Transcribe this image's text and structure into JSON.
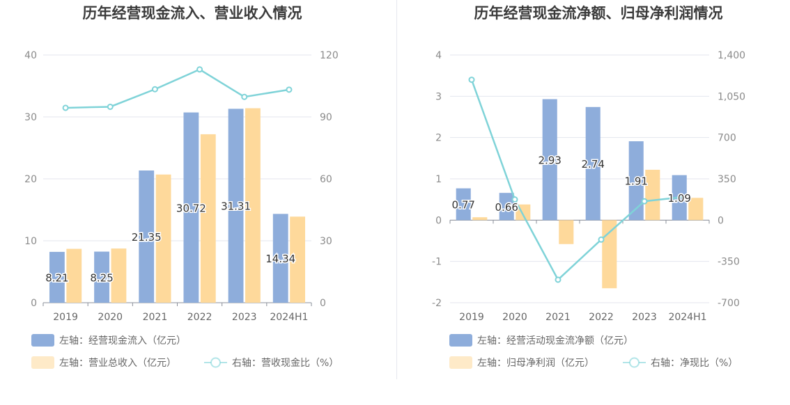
{
  "chart_data": [
    {
      "type": "bar",
      "title": "历年经营现金流入、营业收入情况",
      "categories": [
        "2019",
        "2020",
        "2021",
        "2022",
        "2023",
        "2024H1"
      ],
      "y_left": {
        "ticks": [
          "0",
          "10",
          "20",
          "30",
          "40"
        ],
        "range": [
          0,
          40
        ]
      },
      "y_right": {
        "ticks": [
          "0",
          "30",
          "60",
          "90",
          "120"
        ],
        "range": [
          0,
          120
        ]
      },
      "series": [
        {
          "name": "左轴：经营现金流入（亿元）",
          "type": "bar",
          "axis": "left",
          "color": "#8eaddb",
          "values": [
            8.21,
            8.25,
            21.35,
            30.72,
            31.31,
            14.34
          ],
          "labels": [
            "8.21",
            "8.25",
            "21.35",
            "30.72",
            "31.31",
            "14.34"
          ]
        },
        {
          "name": "左轴：营业总收入（亿元）",
          "type": "bar",
          "axis": "left",
          "color": "#fed99b",
          "values": [
            8.7,
            8.75,
            20.7,
            27.2,
            31.4,
            13.9
          ]
        },
        {
          "name": "右轴：营收现金比（%）",
          "type": "line",
          "axis": "right",
          "color": "#7fd3d8",
          "values": [
            94.4,
            94.9,
            103.4,
            113.0,
            99.7,
            103.2
          ]
        }
      ]
    },
    {
      "type": "bar",
      "title": "历年经营现金流净额、归母净利润情况",
      "categories": [
        "2019",
        "2020",
        "2021",
        "2022",
        "2023",
        "2024H1"
      ],
      "y_left": {
        "ticks": [
          "-2",
          "-1",
          "0",
          "1",
          "2",
          "3",
          "4"
        ],
        "range": [
          -2,
          4
        ]
      },
      "y_right": {
        "ticks": [
          "-700",
          "-350",
          "0",
          "350",
          "700",
          "1,050",
          "1,400"
        ],
        "range": [
          -700,
          1400
        ]
      },
      "series": [
        {
          "name": "左轴：经营活动现金流净额（亿元）",
          "type": "bar",
          "axis": "left",
          "color": "#8eaddb",
          "values": [
            0.77,
            0.66,
            2.93,
            2.74,
            1.91,
            1.09
          ],
          "labels": [
            "0.77",
            "0.66",
            "2.93",
            "2.74",
            "1.91",
            "1.09"
          ]
        },
        {
          "name": "左轴：归母净利润（亿元）",
          "type": "bar",
          "axis": "left",
          "color": "#fed99b",
          "values": [
            0.07,
            0.38,
            -0.58,
            -1.65,
            1.22,
            0.54
          ]
        },
        {
          "name": "右轴：净现比（%）",
          "type": "line",
          "axis": "right",
          "color": "#7fd3d8",
          "values": [
            1190,
            175,
            -505,
            -165,
            160,
            200
          ]
        }
      ]
    }
  ]
}
